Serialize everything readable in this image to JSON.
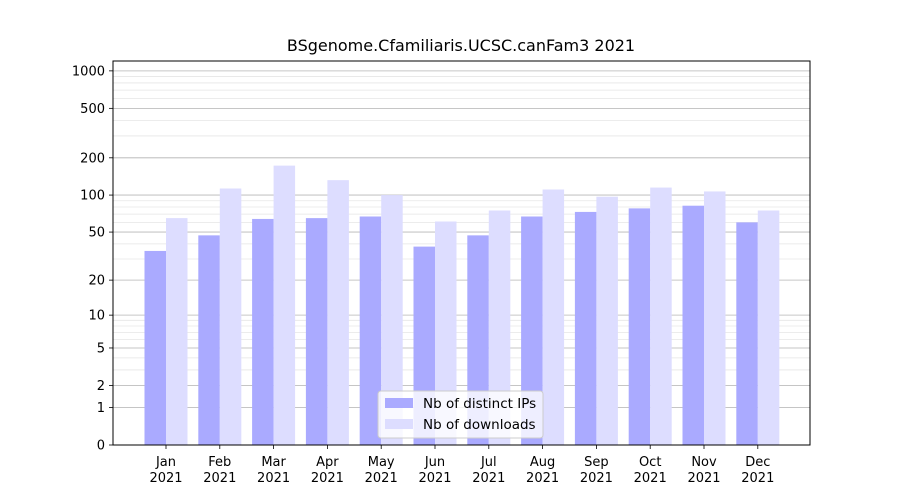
{
  "chart_data": {
    "type": "bar",
    "title": "BSgenome.Cfamiliaris.UCSC.canFam3 2021",
    "xlabel": "",
    "ylabel": "",
    "y_scale": "log(1+y)",
    "ylim": [
      0,
      1200
    ],
    "y_ticks": [
      0,
      1,
      2,
      5,
      10,
      20,
      50,
      100,
      200,
      500,
      1000
    ],
    "categories": [
      [
        "Jan",
        "2021"
      ],
      [
        "Feb",
        "2021"
      ],
      [
        "Mar",
        "2021"
      ],
      [
        "Apr",
        "2021"
      ],
      [
        "May",
        "2021"
      ],
      [
        "Jun",
        "2021"
      ],
      [
        "Jul",
        "2021"
      ],
      [
        "Aug",
        "2021"
      ],
      [
        "Sep",
        "2021"
      ],
      [
        "Oct",
        "2021"
      ],
      [
        "Nov",
        "2021"
      ],
      [
        "Dec",
        "2021"
      ]
    ],
    "series": [
      {
        "name": "Nb of distinct IPs",
        "color": "#aaaaff",
        "values": [
          35,
          47,
          64,
          65,
          67,
          38,
          47,
          67,
          73,
          78,
          82,
          60
        ]
      },
      {
        "name": "Nb of downloads",
        "color": "#ddddff",
        "values": [
          65,
          113,
          173,
          132,
          100,
          61,
          75,
          111,
          97,
          115,
          107,
          75
        ]
      }
    ],
    "grid": true,
    "legend_position": "bottom-center"
  }
}
